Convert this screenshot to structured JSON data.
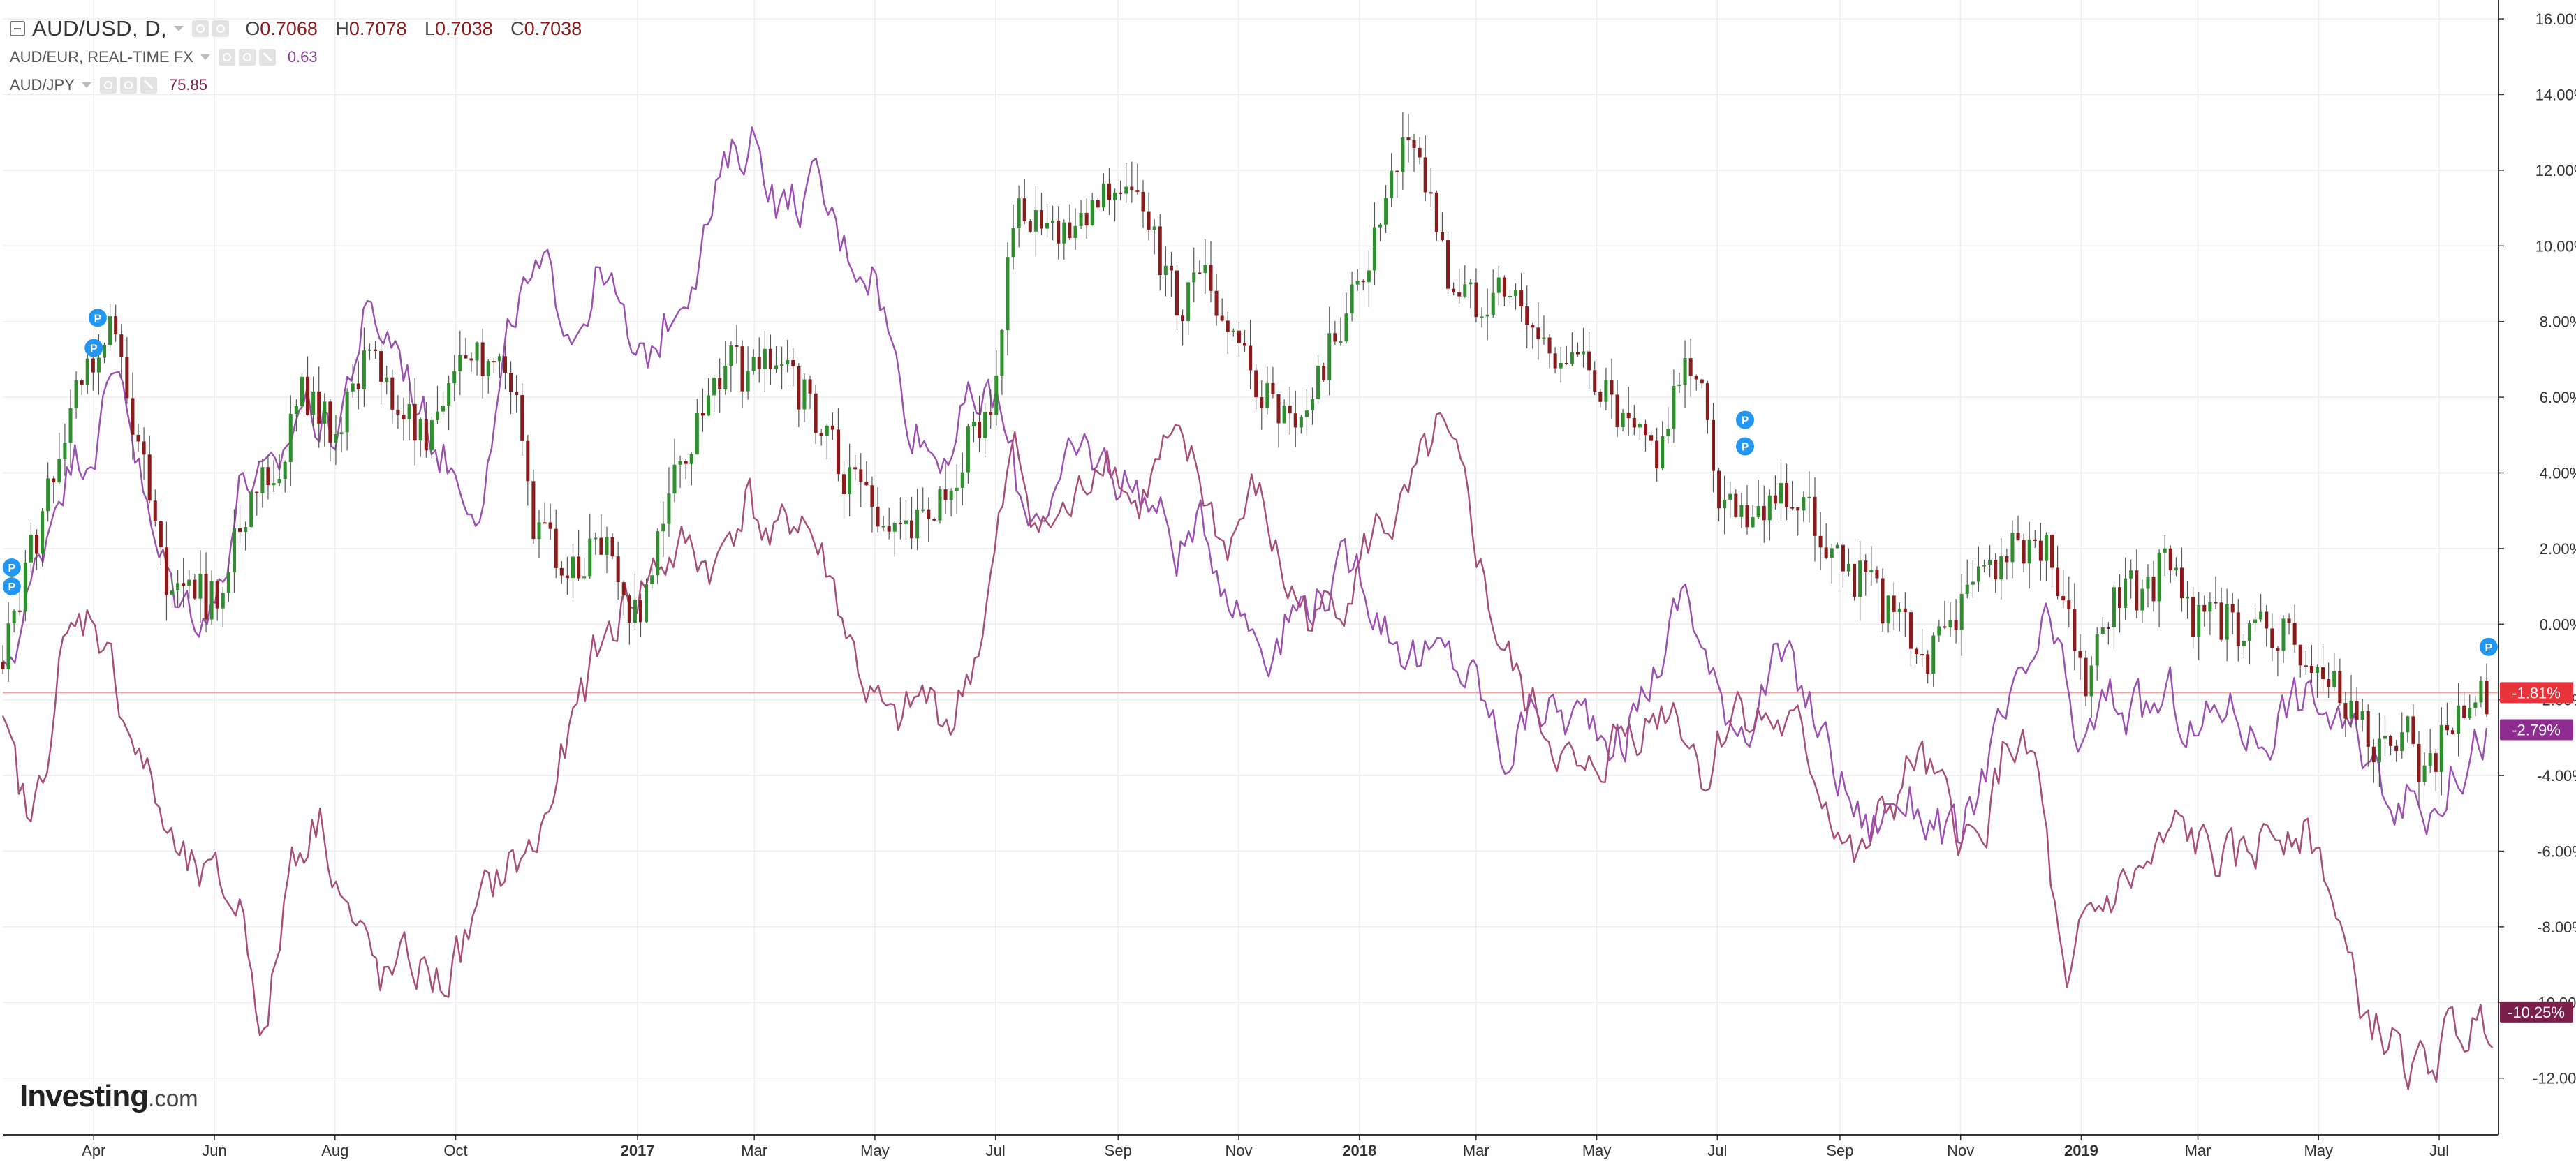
{
  "legend": {
    "main": {
      "symbol": "AUD/USD, D,",
      "o_key": "O",
      "o": "0.7068",
      "h_key": "H",
      "h": "0.7078",
      "l_key": "L",
      "l": "0.7038",
      "c_key": "C",
      "c": "0.7038"
    },
    "compare": [
      {
        "symbol": "AUD/EUR, REAL-TIME FX",
        "value": "0.63",
        "color": "#9b4fb0"
      },
      {
        "symbol": "AUD/JPY",
        "value": "75.85",
        "color": "#a64d79"
      }
    ]
  },
  "logo": {
    "brand": "Investing",
    "suffix": ".com"
  },
  "chart_data": {
    "type": "line",
    "y_unit": "percent change",
    "ylim": [
      -13.5,
      16.5
    ],
    "y_ticks": [
      16,
      14,
      12,
      10,
      8,
      6,
      4,
      2,
      0,
      -2,
      -4,
      -6,
      -8,
      -10,
      -12
    ],
    "y_tick_labels": [
      "16.00%",
      "14.00%",
      "12.00%",
      "10.00%",
      "8.00%",
      "6.00%",
      "4.00%",
      "2.00%",
      "0.00%",
      "-2.00%",
      "-4.00%",
      "-6.00%",
      "-8.00%",
      "-10.00%",
      "-12.00%"
    ],
    "x_range": [
      "2016-02-15",
      "2019-07-31"
    ],
    "x_ticks": [
      {
        "date": "2016-04-01",
        "label": "Apr",
        "bold": false
      },
      {
        "date": "2016-06-01",
        "label": "Jun",
        "bold": false
      },
      {
        "date": "2016-08-01",
        "label": "Aug",
        "bold": false
      },
      {
        "date": "2016-10-01",
        "label": "Oct",
        "bold": false
      },
      {
        "date": "2017-01-01",
        "label": "2017",
        "bold": true
      },
      {
        "date": "2017-03-01",
        "label": "Mar",
        "bold": false
      },
      {
        "date": "2017-05-01",
        "label": "May",
        "bold": false
      },
      {
        "date": "2017-07-01",
        "label": "Jul",
        "bold": false
      },
      {
        "date": "2017-09-01",
        "label": "Sep",
        "bold": false
      },
      {
        "date": "2017-11-01",
        "label": "Nov",
        "bold": false
      },
      {
        "date": "2018-01-01",
        "label": "2018",
        "bold": true
      },
      {
        "date": "2018-03-01",
        "label": "Mar",
        "bold": false
      },
      {
        "date": "2018-05-01",
        "label": "May",
        "bold": false
      },
      {
        "date": "2018-07-01",
        "label": "Jul",
        "bold": false
      },
      {
        "date": "2018-09-01",
        "label": "Sep",
        "bold": false
      },
      {
        "date": "2018-11-01",
        "label": "Nov",
        "bold": false
      },
      {
        "date": "2019-01-01",
        "label": "2019",
        "bold": true
      },
      {
        "date": "2019-03-01",
        "label": "Mar",
        "bold": false
      },
      {
        "date": "2019-05-01",
        "label": "May",
        "bold": false
      },
      {
        "date": "2019-07-01",
        "label": "Jul",
        "bold": false
      }
    ],
    "reference_line": -1.81,
    "grid": true,
    "series": [
      {
        "name": "AUD/USD",
        "style": "candlestick",
        "up_color": "#2f8f2f",
        "down_color": "#8b1a1a",
        "label": "-1.81%",
        "label_color": "#e8333a",
        "x": [
          "2016-02-15",
          "2016-03-01",
          "2016-03-15",
          "2016-04-01",
          "2016-04-10",
          "2016-04-20",
          "2016-05-01",
          "2016-05-10",
          "2016-05-20",
          "2016-06-01",
          "2016-06-15",
          "2016-07-01",
          "2016-07-15",
          "2016-08-01",
          "2016-08-15",
          "2016-09-01",
          "2016-09-15",
          "2016-10-01",
          "2016-10-15",
          "2016-11-01",
          "2016-11-10",
          "2016-11-20",
          "2016-12-01",
          "2016-12-15",
          "2017-01-01",
          "2017-01-15",
          "2017-02-01",
          "2017-02-15",
          "2017-03-01",
          "2017-03-15",
          "2017-04-01",
          "2017-04-15",
          "2017-05-01",
          "2017-05-10",
          "2017-05-20",
          "2017-06-01",
          "2017-06-15",
          "2017-07-01",
          "2017-07-10",
          "2017-07-20",
          "2017-08-01",
          "2017-08-15",
          "2017-09-01",
          "2017-09-08",
          "2017-09-15",
          "2017-10-01",
          "2017-10-15",
          "2017-11-01",
          "2017-11-15",
          "2017-12-01",
          "2017-12-08",
          "2017-12-20",
          "2018-01-01",
          "2018-01-15",
          "2018-01-26",
          "2018-02-05",
          "2018-02-15",
          "2018-03-01",
          "2018-03-15",
          "2018-04-01",
          "2018-04-15",
          "2018-05-01",
          "2018-05-15",
          "2018-06-01",
          "2018-06-10",
          "2018-06-20",
          "2018-07-01",
          "2018-07-15",
          "2018-08-01",
          "2018-08-15",
          "2018-09-01",
          "2018-09-15",
          "2018-10-01",
          "2018-10-15",
          "2018-11-01",
          "2018-11-15",
          "2018-12-01",
          "2018-12-10",
          "2018-12-25",
          "2019-01-03",
          "2019-01-15",
          "2019-02-01",
          "2019-02-15",
          "2019-03-01",
          "2019-03-15",
          "2019-04-01",
          "2019-04-15",
          "2019-05-01",
          "2019-05-15",
          "2019-06-01",
          "2019-06-15",
          "2019-06-25",
          "2019-07-05",
          "2019-07-15",
          "2019-07-25"
        ],
        "values": [
          -1.0,
          2.0,
          5.0,
          7.0,
          8.5,
          5.5,
          3.5,
          0.5,
          1.0,
          0.5,
          3.0,
          4.0,
          6.0,
          5.0,
          7.0,
          6.0,
          5.0,
          6.5,
          7.0,
          6.0,
          2.5,
          2.0,
          1.5,
          2.5,
          0.0,
          3.0,
          5.5,
          7.0,
          6.5,
          7.0,
          5.5,
          4.0,
          3.0,
          2.5,
          2.5,
          3.0,
          4.5,
          6.0,
          11.0,
          10.5,
          10.0,
          11.0,
          12.0,
          11.5,
          10.5,
          8.5,
          9.0,
          7.0,
          6.0,
          5.0,
          6.0,
          7.5,
          9.0,
          11.0,
          13.0,
          11.5,
          9.0,
          8.5,
          9.0,
          7.5,
          7.0,
          6.5,
          5.0,
          4.5,
          6.0,
          7.0,
          3.5,
          3.0,
          3.5,
          3.0,
          1.5,
          1.0,
          0.0,
          -1.0,
          0.5,
          1.5,
          2.0,
          2.5,
          0.0,
          -2.0,
          0.5,
          1.0,
          1.5,
          0.0,
          0.0,
          0.0,
          -0.5,
          -1.0,
          -2.0,
          -3.5,
          -3.0,
          -4.0,
          -2.5,
          -2.0,
          -1.8
        ]
      },
      {
        "name": "AUD/EUR, REAL-TIME FX",
        "style": "line",
        "color": "#9b4fb0",
        "label": "-2.79%",
        "label_color": "#8e2c91",
        "x": [
          "2016-02-15",
          "2016-03-01",
          "2016-03-15",
          "2016-04-01",
          "2016-04-15",
          "2016-05-01",
          "2016-05-15",
          "2016-06-01",
          "2016-06-15",
          "2016-07-01",
          "2016-07-15",
          "2016-08-01",
          "2016-08-15",
          "2016-09-01",
          "2016-09-15",
          "2016-10-01",
          "2016-10-15",
          "2016-11-01",
          "2016-11-15",
          "2016-12-01",
          "2016-12-15",
          "2017-01-01",
          "2017-01-15",
          "2017-02-01",
          "2017-02-15",
          "2017-03-01",
          "2017-03-15",
          "2017-04-01",
          "2017-04-15",
          "2017-05-01",
          "2017-05-15",
          "2017-06-01",
          "2017-06-15",
          "2017-07-01",
          "2017-07-15",
          "2017-08-01",
          "2017-08-15",
          "2017-09-01",
          "2017-09-15",
          "2017-10-01",
          "2017-10-15",
          "2017-11-01",
          "2017-11-15",
          "2017-12-01",
          "2017-12-15",
          "2018-01-01",
          "2018-01-15",
          "2018-02-01",
          "2018-02-15",
          "2018-03-01",
          "2018-03-15",
          "2018-04-01",
          "2018-04-15",
          "2018-05-01",
          "2018-05-15",
          "2018-06-01",
          "2018-06-15",
          "2018-07-01",
          "2018-07-15",
          "2018-08-01",
          "2018-08-15",
          "2018-09-01",
          "2018-09-15",
          "2018-10-01",
          "2018-10-15",
          "2018-11-01",
          "2018-11-15",
          "2018-12-01",
          "2018-12-15",
          "2019-01-01",
          "2019-01-15",
          "2019-02-01",
          "2019-02-15",
          "2019-03-01",
          "2019-03-15",
          "2019-04-01",
          "2019-04-15",
          "2019-05-01",
          "2019-05-15",
          "2019-06-01",
          "2019-06-15",
          "2019-06-25",
          "2019-07-05",
          "2019-07-15",
          "2019-07-25"
        ],
        "values": [
          -1.5,
          1.0,
          4.0,
          5.0,
          7.0,
          2.0,
          0.5,
          0.5,
          4.0,
          3.5,
          6.0,
          5.0,
          8.0,
          7.5,
          5.5,
          4.0,
          3.5,
          8.5,
          9.0,
          8.0,
          9.5,
          6.5,
          8.0,
          10.0,
          12.0,
          13.0,
          11.0,
          11.5,
          10.0,
          9.5,
          6.0,
          4.5,
          5.5,
          6.0,
          3.0,
          3.5,
          4.5,
          4.0,
          3.5,
          2.0,
          2.5,
          0.5,
          -0.5,
          0.5,
          1.0,
          1.5,
          0.0,
          -1.0,
          -1.0,
          -1.5,
          -3.5,
          -2.0,
          -2.5,
          -2.5,
          -3.0,
          -1.0,
          1.0,
          -2.0,
          -2.5,
          -1.0,
          -2.0,
          -4.0,
          -5.5,
          -4.5,
          -5.0,
          -6.0,
          -3.5,
          -2.0,
          0.0,
          -3.5,
          -2.0,
          -2.5,
          -2.0,
          -3.0,
          -2.0,
          -3.0,
          -2.0,
          -2.0,
          -3.0,
          -4.0,
          -4.5,
          -5.0,
          -4.0,
          -3.5,
          -2.8
        ]
      },
      {
        "name": "AUD/JPY",
        "style": "line",
        "color": "#a64d79",
        "label": "-10.25%",
        "label_color": "#7a1f4a",
        "x": [
          "2016-02-15",
          "2016-03-01",
          "2016-03-15",
          "2016-04-01",
          "2016-04-15",
          "2016-05-01",
          "2016-05-15",
          "2016-06-01",
          "2016-06-15",
          "2016-06-27",
          "2016-07-10",
          "2016-07-25",
          "2016-08-10",
          "2016-08-25",
          "2016-09-10",
          "2016-09-25",
          "2016-10-10",
          "2016-10-25",
          "2016-11-10",
          "2016-11-25",
          "2016-12-10",
          "2016-12-25",
          "2017-01-10",
          "2017-01-25",
          "2017-02-10",
          "2017-02-25",
          "2017-03-10",
          "2017-03-25",
          "2017-04-10",
          "2017-04-25",
          "2017-05-10",
          "2017-05-25",
          "2017-06-10",
          "2017-06-25",
          "2017-07-10",
          "2017-07-25",
          "2017-08-10",
          "2017-08-25",
          "2017-09-10",
          "2017-09-25",
          "2017-10-10",
          "2017-10-25",
          "2017-11-10",
          "2017-11-25",
          "2017-12-10",
          "2017-12-25",
          "2018-01-10",
          "2018-01-25",
          "2018-02-10",
          "2018-02-25",
          "2018-03-10",
          "2018-03-25",
          "2018-04-10",
          "2018-04-25",
          "2018-05-10",
          "2018-05-25",
          "2018-06-10",
          "2018-06-25",
          "2018-07-10",
          "2018-07-25",
          "2018-08-10",
          "2018-08-25",
          "2018-09-10",
          "2018-09-25",
          "2018-10-10",
          "2018-10-25",
          "2018-11-10",
          "2018-11-25",
          "2018-12-10",
          "2018-12-25",
          "2019-01-03",
          "2019-01-20",
          "2019-02-05",
          "2019-02-20",
          "2019-03-05",
          "2019-03-20",
          "2019-04-05",
          "2019-04-20",
          "2019-05-05",
          "2019-05-20",
          "2019-06-05",
          "2019-06-20",
          "2019-07-05",
          "2019-07-20",
          "2019-07-28"
        ],
        "values": [
          -3.0,
          -5.5,
          -1.0,
          0.5,
          -2.0,
          -4.5,
          -6.5,
          -7.0,
          -7.5,
          -11.0,
          -6.0,
          -5.0,
          -8.0,
          -9.5,
          -9.0,
          -9.5,
          -8.0,
          -6.5,
          -6.0,
          -3.5,
          -1.0,
          0.5,
          1.5,
          2.0,
          1.5,
          3.5,
          2.0,
          3.0,
          1.0,
          -1.5,
          -3.0,
          -2.0,
          -2.5,
          0.0,
          4.5,
          2.5,
          3.0,
          5.0,
          3.0,
          4.5,
          4.0,
          2.0,
          3.5,
          1.0,
          0.0,
          1.0,
          2.5,
          3.0,
          5.0,
          3.0,
          0.0,
          -2.0,
          -3.0,
          -4.5,
          -3.0,
          -2.5,
          -2.0,
          -4.0,
          -2.0,
          -2.5,
          -3.0,
          -4.5,
          -6.5,
          -5.0,
          -3.5,
          -5.0,
          -6.0,
          -3.0,
          -4.0,
          -10.5,
          -8.0,
          -7.0,
          -6.5,
          -5.5,
          -6.0,
          -6.5,
          -5.5,
          -5.0,
          -6.5,
          -10.0,
          -11.0,
          -12.0,
          -11.0,
          -10.5,
          -10.25
        ]
      }
    ]
  }
}
